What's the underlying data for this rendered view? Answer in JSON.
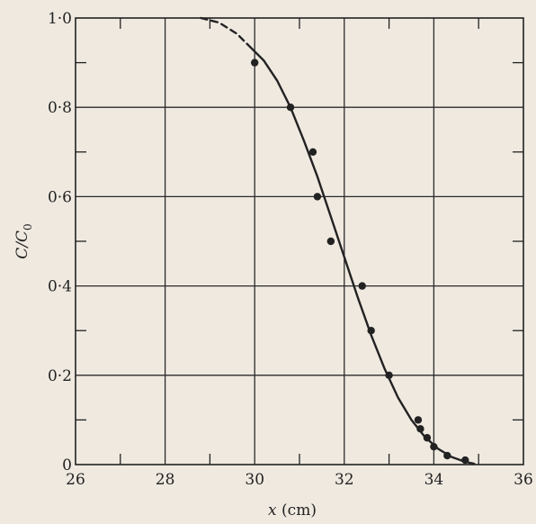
{
  "chart_data": {
    "type": "scatter",
    "title": "",
    "xlabel": "x (cm)",
    "ylabel": "C/C0",
    "xlim": [
      26,
      36
    ],
    "ylim": [
      0,
      1.0
    ],
    "x_ticks": [
      26,
      28,
      30,
      32,
      34,
      36
    ],
    "y_ticks": [
      0,
      0.2,
      0.4,
      0.6,
      0.8,
      1.0
    ],
    "x_tick_labels": [
      "26",
      "28",
      "30",
      "32",
      "34",
      "36"
    ],
    "y_tick_labels": [
      "0",
      "0·2",
      "0·4",
      "0·6",
      "0·8",
      "1·0"
    ],
    "grid": true,
    "series": [
      {
        "type": "scatter",
        "points": [
          {
            "x": 30.0,
            "y": 0.9
          },
          {
            "x": 30.8,
            "y": 0.8
          },
          {
            "x": 31.3,
            "y": 0.7
          },
          {
            "x": 31.4,
            "y": 0.6
          },
          {
            "x": 31.7,
            "y": 0.5
          },
          {
            "x": 32.4,
            "y": 0.4
          },
          {
            "x": 32.6,
            "y": 0.3
          },
          {
            "x": 33.0,
            "y": 0.2
          },
          {
            "x": 33.65,
            "y": 0.1
          },
          {
            "x": 33.7,
            "y": 0.08
          },
          {
            "x": 33.85,
            "y": 0.06
          },
          {
            "x": 34.0,
            "y": 0.04
          },
          {
            "x": 34.3,
            "y": 0.02
          },
          {
            "x": 34.7,
            "y": 0.01
          }
        ]
      },
      {
        "type": "line",
        "style": "solid",
        "points": [
          {
            "x": 29.9,
            "y": 0.935
          },
          {
            "x": 30.2,
            "y": 0.905
          },
          {
            "x": 30.5,
            "y": 0.86
          },
          {
            "x": 30.8,
            "y": 0.8
          },
          {
            "x": 31.1,
            "y": 0.725
          },
          {
            "x": 31.4,
            "y": 0.645
          },
          {
            "x": 31.7,
            "y": 0.555
          },
          {
            "x": 32.0,
            "y": 0.465
          },
          {
            "x": 32.3,
            "y": 0.375
          },
          {
            "x": 32.6,
            "y": 0.29
          },
          {
            "x": 32.9,
            "y": 0.215
          },
          {
            "x": 33.2,
            "y": 0.15
          },
          {
            "x": 33.5,
            "y": 0.1
          },
          {
            "x": 33.8,
            "y": 0.062
          },
          {
            "x": 34.1,
            "y": 0.035
          },
          {
            "x": 34.4,
            "y": 0.017
          },
          {
            "x": 34.7,
            "y": 0.006
          },
          {
            "x": 34.9,
            "y": 0.002
          }
        ]
      },
      {
        "type": "line",
        "style": "dashed",
        "points": [
          {
            "x": 28.8,
            "y": 1.0
          },
          {
            "x": 29.2,
            "y": 0.99
          },
          {
            "x": 29.6,
            "y": 0.965
          },
          {
            "x": 29.9,
            "y": 0.935
          }
        ]
      }
    ],
    "colors": {
      "background": "#efe9e0",
      "ink": "#222222",
      "grid": "#2b2b2b"
    }
  }
}
